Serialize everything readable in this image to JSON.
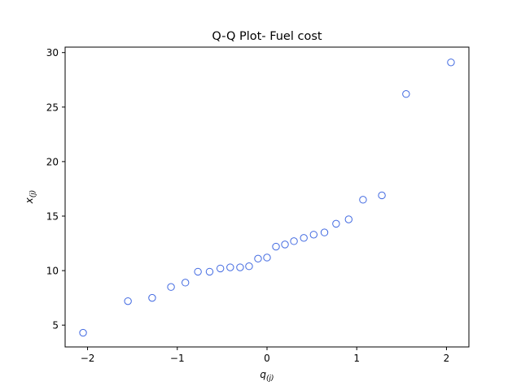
{
  "chart_data": {
    "type": "scatter",
    "title": "Q-Q Plot- Fuel cost",
    "xlabel": {
      "base": "q",
      "sub": "(j)"
    },
    "ylabel": {
      "base": "x",
      "sub": "(j)"
    },
    "xlim": [
      -2.25,
      2.25
    ],
    "ylim": [
      3.0,
      30.5
    ],
    "xticks": [
      -2,
      -1,
      0,
      1,
      2
    ],
    "xtick_labels": [
      "−2",
      "−1",
      "0",
      "1",
      "2"
    ],
    "yticks": [
      5,
      10,
      15,
      20,
      25,
      30
    ],
    "ytick_labels": [
      "5",
      "10",
      "15",
      "20",
      "25",
      "30"
    ],
    "grid": false,
    "marker": {
      "shape": "circle",
      "fill": "none",
      "edge_color": "#4169e1"
    },
    "series": [
      {
        "x": [
          -2.05,
          -1.55,
          -1.28,
          -1.07,
          -0.91,
          -0.77,
          -0.64,
          -0.52,
          -0.41,
          -0.3,
          -0.2,
          -0.1,
          0.0,
          0.1,
          0.2,
          0.3,
          0.41,
          0.52,
          0.64,
          0.77,
          0.91,
          1.07,
          1.28,
          1.55,
          2.05
        ],
        "y": [
          4.3,
          7.2,
          7.5,
          8.5,
          8.9,
          9.9,
          9.9,
          10.2,
          10.3,
          10.3,
          10.4,
          11.1,
          11.2,
          12.2,
          12.4,
          12.7,
          13.0,
          13.3,
          13.5,
          14.3,
          14.7,
          16.5,
          16.9,
          26.2,
          29.1
        ]
      }
    ]
  }
}
